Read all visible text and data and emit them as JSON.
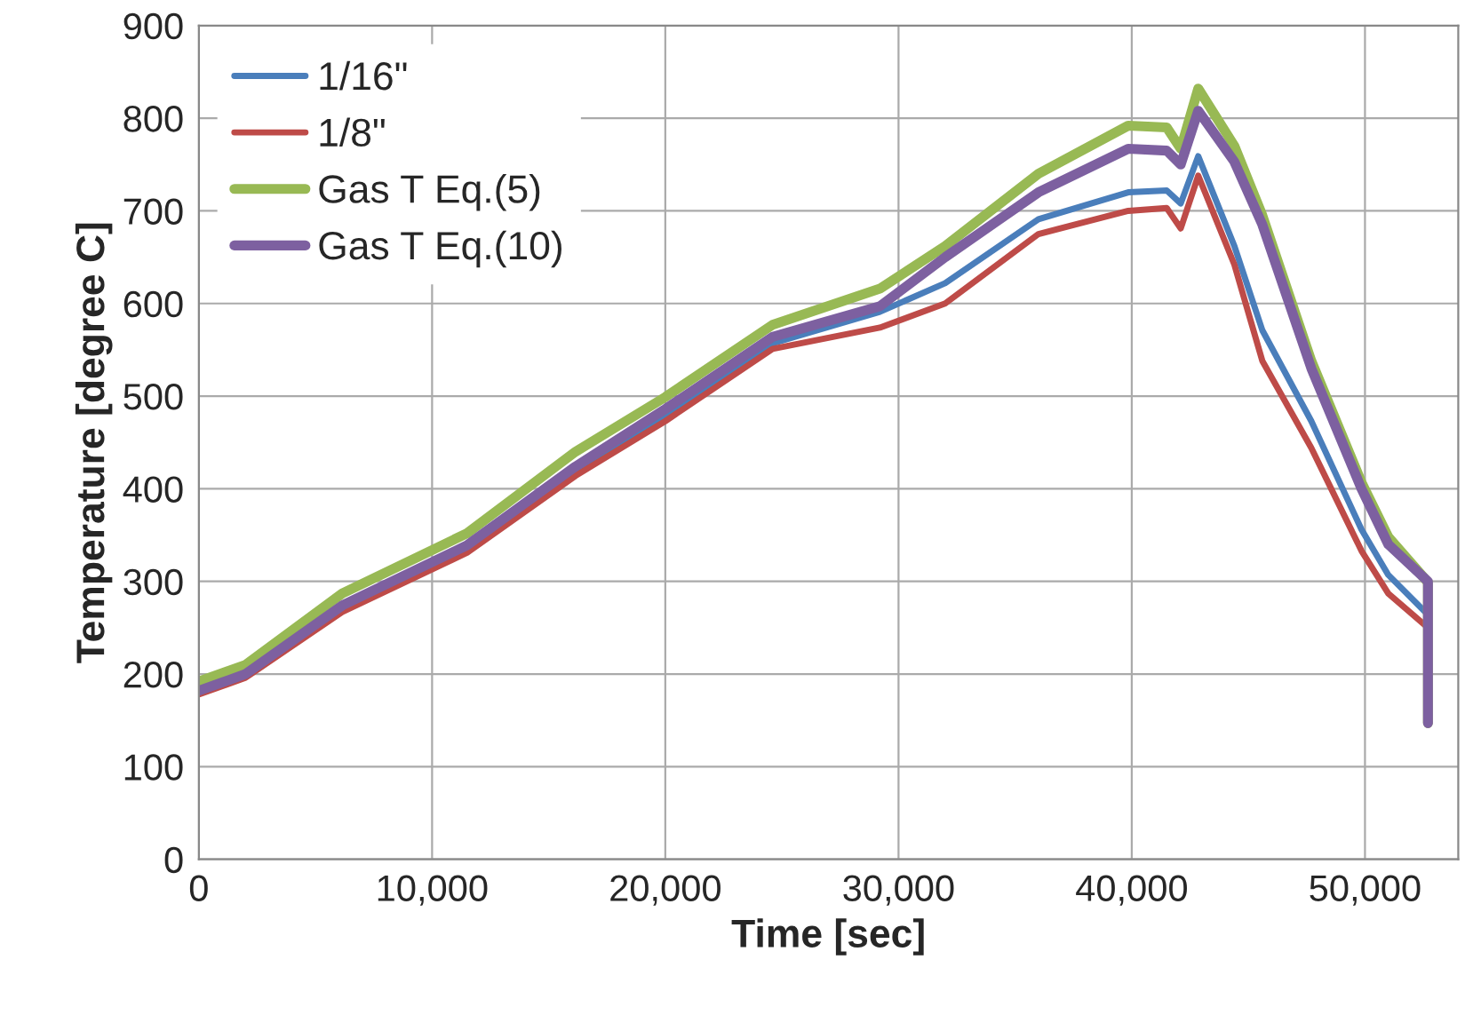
{
  "chart_data": {
    "type": "line",
    "xlabel": "Time [sec]",
    "ylabel": "Temperature [degree C]",
    "x": [
      0,
      2000,
      6150,
      11500,
      16150,
      20000,
      24600,
      29200,
      32000,
      36000,
      39850,
      41500,
      42100,
      42850,
      44400,
      45600,
      47700,
      49850,
      51000,
      52700,
      52700
    ],
    "series": [
      {
        "name": "1/16\"",
        "color": "#4a7ebb",
        "values": [
          null,
          null,
          270,
          335,
          418,
          480,
          557,
          591,
          622,
          691,
          720,
          722,
          708,
          759,
          662,
          571,
          473,
          356,
          307,
          264,
          147
        ]
      },
      {
        "name": "1/8\"",
        "color": "#be4b48",
        "values": [
          178,
          196,
          267,
          331,
          414,
          473,
          551,
          574,
          600,
          675,
          700,
          703,
          681,
          738,
          642,
          538,
          444,
          333,
          287,
          250,
          147
        ]
      },
      {
        "name": "Gas T Eq.(5)",
        "color": "#98b954",
        "values": [
          192,
          210,
          287,
          352,
          440,
          499,
          577,
          616,
          662,
          740,
          792,
          790,
          767,
          832,
          770,
          695,
          538,
          407,
          348,
          299,
          147
        ]
      },
      {
        "name": "Gas T Eq.(10)",
        "color": "#7d60a0",
        "values": [
          182,
          200,
          274,
          339,
          424,
          486,
          564,
          597,
          650,
          720,
          767,
          765,
          750,
          808,
          753,
          685,
          530,
          400,
          340,
          300,
          147
        ]
      }
    ],
    "xlim": [
      0,
      54000
    ],
    "xticks": [
      0,
      {
        "value": 10000,
        "label": "10,000"
      },
      {
        "value": 20000,
        "label": "20,000"
      },
      {
        "value": 30000,
        "label": "30,000"
      },
      {
        "value": 40000,
        "label": "40,000"
      },
      {
        "value": 50000,
        "label": "50,000"
      }
    ],
    "ylim": [
      0,
      900
    ],
    "yticks": [
      0,
      100,
      200,
      300,
      400,
      500,
      600,
      700,
      800,
      900
    ],
    "grid": true,
    "legend": "top left",
    "marker": "none",
    "line_style": "solid"
  }
}
